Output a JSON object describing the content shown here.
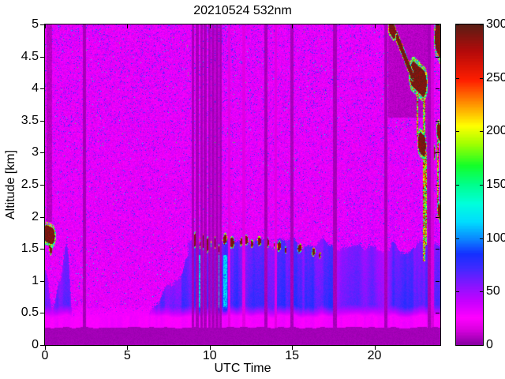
{
  "title": "20210524 532nm",
  "axes": {
    "xlabel": "UTC Time",
    "ylabel": "Altitude [km]",
    "x_tick_labels": [
      "0",
      "5",
      "10",
      "15",
      "20"
    ],
    "y_tick_labels": [
      "0",
      "0.5",
      "1",
      "1.5",
      "2",
      "2.5",
      "3",
      "3.5",
      "4",
      "4.5",
      "5"
    ],
    "colorbar_tick_labels": [
      "0",
      "50",
      "100",
      "150",
      "200",
      "250",
      "300"
    ]
  },
  "chart_data": {
    "type": "heatmap",
    "title": "20210524 532nm",
    "xlabel": "UTC Time",
    "ylabel": "Altitude [km]",
    "x_range": [
      0,
      24
    ],
    "y_range": [
      0,
      5
    ],
    "x_ticks": [
      0,
      5,
      10,
      15,
      20
    ],
    "y_ticks": [
      0,
      0.5,
      1,
      1.5,
      2,
      2.5,
      3,
      3.5,
      4,
      4.5,
      5
    ],
    "grid": false,
    "legend": false,
    "colorbar": {
      "min": 0,
      "max": 300,
      "ticks": [
        0,
        50,
        100,
        150,
        200,
        250,
        300
      ],
      "position": "right"
    },
    "colormap_stops": [
      [
        0,
        "#8A00A4"
      ],
      [
        14,
        "#D800DE"
      ],
      [
        25,
        "#FF00FF"
      ],
      [
        40,
        "#C800FF"
      ],
      [
        55,
        "#8A14FF"
      ],
      [
        70,
        "#4628FF"
      ],
      [
        85,
        "#1430FF"
      ],
      [
        100,
        "#0A8CFF"
      ],
      [
        115,
        "#00DCFF"
      ],
      [
        132,
        "#00FFDC"
      ],
      [
        150,
        "#00FF8C"
      ],
      [
        168,
        "#14FF28"
      ],
      [
        188,
        "#A0FF00"
      ],
      [
        205,
        "#FFFF00"
      ],
      [
        225,
        "#FF9600"
      ],
      [
        248,
        "#FF1E00"
      ],
      [
        275,
        "#B40A0A"
      ],
      [
        300,
        "#5A1E14"
      ]
    ],
    "seed": 20210524,
    "background_noise": {
      "base": 15,
      "amp": 26,
      "blue_speckle_prob": 0.04,
      "blue_speckle_range": [
        42,
        97
      ],
      "rare_speckle_prob": 0.0025,
      "rare_speckle_range": [
        100,
        170
      ]
    },
    "surface": {
      "dark_layer_top_km": 0.26,
      "dark_value": 3,
      "bright_band_top_km": 0.42,
      "bright_band_value": 24
    },
    "boundary_layer": {
      "ramp_start_utc": 6.3,
      "ramp_end_utc": 8.7,
      "mixed_top_km": 1.6,
      "cyan_streaks_utc": [
        8.5,
        11.3
      ],
      "weak_period_utc": [
        17.7,
        21.0
      ],
      "morning_plumes_utc": [
        0,
        2.2
      ],
      "wash_after_utc": 17.6,
      "wash_top_km": 2.8
    },
    "upper_blue_patch": {
      "t0": 9.8,
      "t1": 11.6,
      "h0": 4.3,
      "h1": 5.0
    },
    "attenuated_zones": [
      {
        "t0": 20.82,
        "t1": 23.28,
        "h0": 3.55,
        "h1": 5.0,
        "v": 8
      },
      {
        "t0": 0.08,
        "t1": 0.45,
        "h0": 1.92,
        "h1": 5.0,
        "v": 8
      },
      {
        "t0": 22.95,
        "t1": 23.3,
        "h0": 1.9,
        "h1": 3.55,
        "v": 9
      }
    ],
    "precip_streaks": [
      {
        "t": 23.02,
        "w": 0.06,
        "h0": 1.3,
        "h1": 3.95
      },
      {
        "t": 23.12,
        "w": 0.05,
        "h0": 1.55,
        "h1": 3.0
      },
      {
        "t": 22.62,
        "w": 0.05,
        "h0": 3.25,
        "h1": 3.95
      },
      {
        "t": 23.85,
        "w": 0.05,
        "h0": 2.2,
        "h1": 3.2
      }
    ],
    "clouds": [
      {
        "t0": 0.1,
        "h0": 1.74,
        "t1": 0.42,
        "h1": 1.7,
        "rt": 0.18,
        "rh": 0.13
      },
      {
        "t0": 0.32,
        "h0": 1.56,
        "t1": 0.36,
        "h1": 1.5,
        "rt": 0.07,
        "rh": 0.08
      },
      {
        "t0": 9.05,
        "h0": 1.63,
        "t1": 9.2,
        "h1": 1.66,
        "rt": 0.1,
        "rh": 0.09
      },
      {
        "t0": 9.5,
        "h0": 1.58,
        "t1": 9.62,
        "h1": 1.62,
        "rt": 0.09,
        "rh": 0.09
      },
      {
        "t0": 9.82,
        "h0": 1.55,
        "t1": 9.95,
        "h1": 1.58,
        "rt": 0.1,
        "rh": 0.09
      },
      {
        "t0": 10.18,
        "h0": 1.58,
        "t1": 10.28,
        "h1": 1.6,
        "rt": 0.08,
        "rh": 0.08
      },
      {
        "t0": 10.48,
        "h0": 1.5,
        "t1": 10.52,
        "h1": 1.5,
        "rt": 0.06,
        "rh": 0.06
      },
      {
        "t0": 10.9,
        "h0": 1.64,
        "t1": 10.95,
        "h1": 1.66,
        "rt": 0.07,
        "rh": 0.07
      },
      {
        "t0": 11.32,
        "h0": 1.6,
        "t1": 11.4,
        "h1": 1.6,
        "rt": 0.08,
        "rh": 0.07
      },
      {
        "t0": 11.9,
        "h0": 1.6,
        "t1": 11.93,
        "h1": 1.62,
        "rt": 0.05,
        "rh": 0.05
      },
      {
        "t0": 12.18,
        "h0": 1.64,
        "t1": 12.25,
        "h1": 1.64,
        "rt": 0.07,
        "rh": 0.06
      },
      {
        "t0": 12.55,
        "h0": 1.58,
        "t1": 12.58,
        "h1": 1.58,
        "rt": 0.05,
        "rh": 0.05
      },
      {
        "t0": 12.98,
        "h0": 1.62,
        "t1": 13.05,
        "h1": 1.62,
        "rt": 0.06,
        "rh": 0.06
      },
      {
        "t0": 13.48,
        "h0": 1.58,
        "t1": 13.53,
        "h1": 1.6,
        "rt": 0.06,
        "rh": 0.06
      },
      {
        "t0": 13.95,
        "h0": 1.56,
        "t1": 13.98,
        "h1": 1.56,
        "rt": 0.04,
        "rh": 0.05
      },
      {
        "t0": 14.18,
        "h0": 1.53,
        "t1": 14.25,
        "h1": 1.55,
        "rt": 0.06,
        "rh": 0.06
      },
      {
        "t0": 14.6,
        "h0": 1.48,
        "t1": 14.62,
        "h1": 1.48,
        "rt": 0.04,
        "rh": 0.04
      },
      {
        "t0": 15.42,
        "h0": 1.5,
        "t1": 15.5,
        "h1": 1.52,
        "rt": 0.07,
        "rh": 0.05
      },
      {
        "t0": 16.28,
        "h0": 1.45,
        "t1": 16.33,
        "h1": 1.46,
        "rt": 0.06,
        "rh": 0.05
      },
      {
        "t0": 16.68,
        "h0": 1.4,
        "t1": 16.7,
        "h1": 1.4,
        "rt": 0.04,
        "rh": 0.04
      },
      {
        "t0": 21.0,
        "h0": 4.95,
        "t1": 21.18,
        "h1": 4.88,
        "rt": 0.12,
        "rh": 0.1
      },
      {
        "t0": 21.35,
        "h0": 4.82,
        "t1": 22.3,
        "h1": 4.2,
        "rt": 0.06,
        "rh": 0.07
      },
      {
        "t0": 22.38,
        "h0": 4.22,
        "t1": 22.95,
        "h1": 4.08,
        "rt": 0.22,
        "rh": 0.2
      },
      {
        "t0": 22.78,
        "h0": 3.16,
        "t1": 23.0,
        "h1": 3.1,
        "rt": 0.12,
        "rh": 0.16
      },
      {
        "t0": 23.55,
        "h0": 3.05,
        "t1": 23.62,
        "h1": 3.0,
        "rt": 0.07,
        "rh": 0.09
      },
      {
        "t0": 23.85,
        "h0": 4.8,
        "t1": 24.0,
        "h1": 4.72,
        "rt": 0.18,
        "rh": 0.24
      },
      {
        "t0": 23.9,
        "h0": 3.35,
        "t1": 24.0,
        "h1": 3.3,
        "rt": 0.1,
        "rh": 0.12
      },
      {
        "t0": 23.92,
        "h0": 2.1,
        "t1": 24.0,
        "h1": 2.05,
        "rt": 0.08,
        "rh": 0.1
      }
    ],
    "dark_columns": [
      {
        "t": 2.35,
        "w": 0.1,
        "v": 3
      },
      {
        "t": 8.95,
        "w": 0.06,
        "v": 3
      },
      {
        "t": 9.2,
        "w": 0.1,
        "v": 3
      },
      {
        "t": 9.5,
        "w": 0.06,
        "v": 3
      },
      {
        "t": 9.72,
        "w": 0.1,
        "v": 3
      },
      {
        "t": 9.95,
        "w": 0.06,
        "v": 3
      },
      {
        "t": 10.17,
        "w": 0.1,
        "v": 3
      },
      {
        "t": 10.42,
        "w": 0.06,
        "v": 3
      },
      {
        "t": 10.62,
        "w": 0.06,
        "v": 3
      },
      {
        "t": 11.15,
        "w": 0.05,
        "v": 14
      },
      {
        "t": 12.05,
        "w": 0.05,
        "v": 14
      },
      {
        "t": 13.37,
        "w": 0.1,
        "v": 3
      },
      {
        "t": 14.0,
        "w": 0.05,
        "v": 14
      },
      {
        "t": 14.97,
        "w": 0.1,
        "v": 3
      },
      {
        "t": 17.57,
        "w": 0.12,
        "v": 3
      },
      {
        "t": 20.67,
        "w": 0.12,
        "v": 3
      },
      {
        "t": 23.35,
        "w": 0.14,
        "v": 3
      },
      {
        "t": 23.5,
        "w": 0.06,
        "v": 12
      }
    ]
  }
}
